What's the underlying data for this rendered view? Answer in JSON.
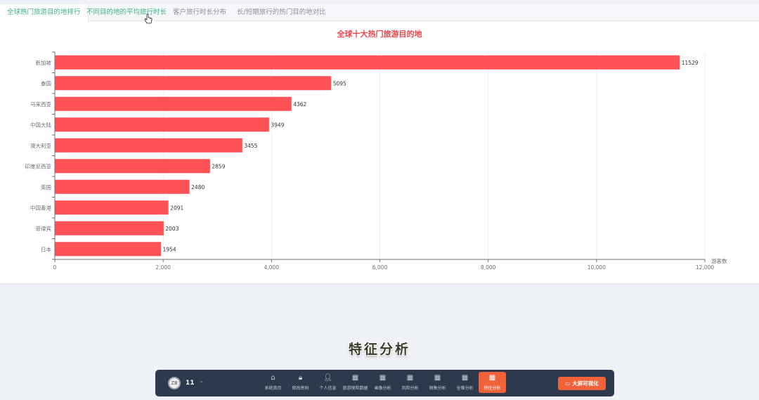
{
  "tabs": [
    {
      "label": "全球热门旅游目的地排行",
      "state": "active"
    },
    {
      "label": "不同目的地的平均旅行时长",
      "state": "hover"
    },
    {
      "label": "客户旅行时长分布",
      "state": "normal"
    },
    {
      "label": "长/短期旅行的热门目的地对比",
      "state": "normal"
    }
  ],
  "chart_data": {
    "type": "bar",
    "orientation": "horizontal",
    "title": "全球十大热门旅游目的地",
    "xlabel": "游客数",
    "ylabel": "",
    "categories": [
      "新加坡",
      "泰国",
      "马来西亚",
      "中国大陆",
      "澳大利亚",
      "印度尼西亚",
      "英国",
      "中国香港",
      "菲律宾",
      "日本"
    ],
    "values": [
      11529,
      5095,
      4362,
      3949,
      3455,
      2859,
      2480,
      2091,
      2003,
      1954
    ],
    "value_labels": [
      "11529",
      "5095",
      "4362",
      "3949",
      "3455",
      "2859",
      "2480",
      "2091",
      "2003",
      "1954"
    ],
    "x_ticks": [
      0,
      2000,
      4000,
      6000,
      8000,
      10000,
      12000
    ],
    "x_tick_labels": [
      "0",
      "2,000",
      "4,000",
      "6,000",
      "8,000",
      "10,000",
      "12,000"
    ],
    "xlim": [
      0,
      12000
    ],
    "grid": true,
    "bar_color": "#ff5257",
    "title_color": "#e8474f"
  },
  "caption": "特征分析",
  "dock": {
    "user_avatar_text": "ZB",
    "user_number": "11",
    "items": [
      {
        "label": "系统首页",
        "icon": "home-icon",
        "glyph": "⌂"
      },
      {
        "label": "修改密码",
        "icon": "lock-icon",
        "glyph": "🔒︎"
      },
      {
        "label": "个人信息",
        "icon": "user-icon",
        "glyph": "👤︎"
      },
      {
        "label": "旅游保险数据",
        "icon": "grid-icon",
        "glyph": "▦"
      },
      {
        "label": "画像分析",
        "icon": "grid-icon",
        "glyph": "▦"
      },
      {
        "label": "风险分析",
        "icon": "grid-icon",
        "glyph": "▦"
      },
      {
        "label": "销售分析",
        "icon": "grid-icon",
        "glyph": "▦"
      },
      {
        "label": "全维分析",
        "icon": "grid-icon",
        "glyph": "▦"
      },
      {
        "label": "特征分析",
        "icon": "grid-icon",
        "glyph": "▦",
        "active": true
      }
    ],
    "bigscreen_label": "大屏可视化",
    "accent_color": "#f0633a"
  }
}
